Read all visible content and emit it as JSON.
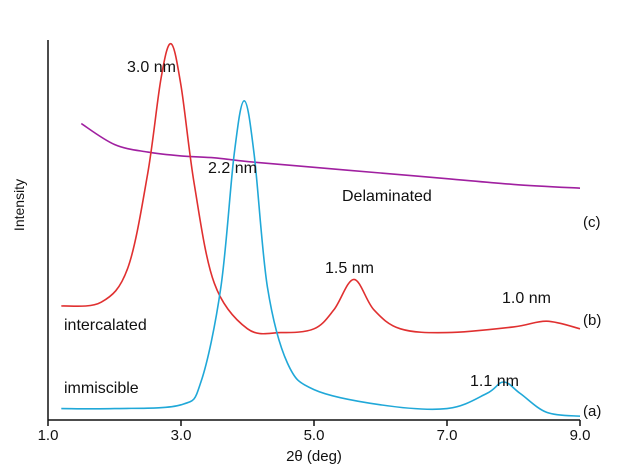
{
  "chart_data": {
    "type": "line",
    "xlabel": "2θ (deg)",
    "ylabel": "Intensity",
    "xlim": [
      1.0,
      9.0
    ],
    "ylim": [
      0,
      1
    ],
    "x_ticks": [
      "1.0",
      "3.0",
      "5.0",
      "7.0",
      "9.0"
    ],
    "grid": false,
    "legend": "none",
    "series": [
      {
        "label": "(c)",
        "color": "#a020a0",
        "x": [
          1.5,
          2.0,
          2.5,
          3.0,
          3.5,
          4.0,
          5.0,
          6.0,
          7.0,
          8.0,
          9.0
        ],
        "y": [
          0.78,
          0.725,
          0.705,
          0.695,
          0.69,
          0.68,
          0.665,
          0.65,
          0.635,
          0.62,
          0.61
        ]
      },
      {
        "label": "(b)",
        "color": "#e03030",
        "x": [
          1.2,
          1.8,
          2.2,
          2.5,
          2.7,
          2.85,
          3.0,
          3.2,
          3.5,
          4.0,
          4.5,
          5.0,
          5.3,
          5.6,
          5.9,
          6.3,
          7.0,
          8.0,
          8.5,
          9.0
        ],
        "y": [
          0.3,
          0.31,
          0.4,
          0.65,
          0.9,
          0.99,
          0.88,
          0.62,
          0.36,
          0.24,
          0.23,
          0.24,
          0.29,
          0.37,
          0.29,
          0.24,
          0.23,
          0.245,
          0.26,
          0.24
        ]
      },
      {
        "label": "(a)",
        "color": "#20a8d8",
        "x": [
          1.2,
          2.0,
          3.0,
          3.3,
          3.6,
          3.8,
          3.95,
          4.1,
          4.3,
          4.6,
          5.0,
          6.0,
          7.0,
          7.6,
          7.85,
          8.1,
          8.5,
          9.0
        ],
        "y": [
          0.03,
          0.03,
          0.04,
          0.1,
          0.35,
          0.7,
          0.84,
          0.7,
          0.35,
          0.15,
          0.08,
          0.04,
          0.03,
          0.07,
          0.1,
          0.07,
          0.02,
          0.01
        ]
      }
    ],
    "annotations": [
      "3.0 nm",
      "2.2 nm",
      "Delaminated",
      "1.5 nm",
      "1.0 nm",
      "intercalated",
      "immiscible",
      "1.1 nm"
    ]
  }
}
